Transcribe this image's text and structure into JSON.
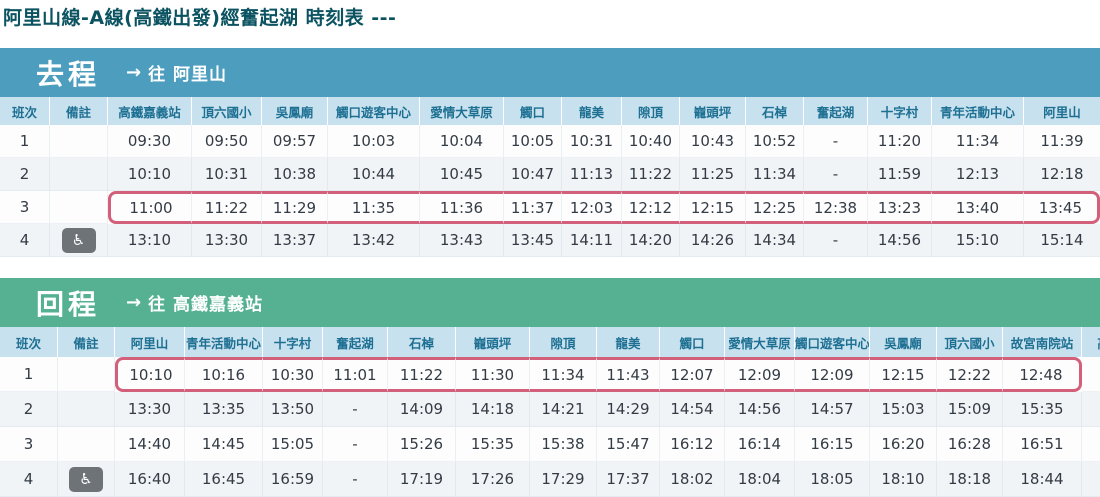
{
  "page": {
    "title": "阿里山線-A線(高鐵出發)經奮起湖 時刻表  ---"
  },
  "theme": {
    "band_out": "#4d9ebe",
    "band_ret": "#56b193",
    "header_bg": "#c7e1ee",
    "header_text": "#1e7093",
    "highlight": "#d2607a",
    "badge": "#6e7377",
    "title": "#0b5361",
    "text": "#333b44",
    "alt_row": "#f1f4f7"
  },
  "icons": {
    "wheelchair": "♿",
    "arrow_right": "→"
  },
  "tables": [
    {
      "band_label": "去程",
      "arrow": "→",
      "destination": "往 阿里山",
      "columns": [
        "班次",
        "備註",
        "高鐵嘉義站",
        "頂六國小",
        "吳鳳廟",
        "觸口遊客中心",
        "愛情大草原",
        "觸口",
        "龍美",
        "隙頂",
        "巃頭坪",
        "石棹",
        "奮起湖",
        "十字村",
        "青年活動中心",
        "阿里山"
      ],
      "rows": [
        {
          "no": "1",
          "note": "",
          "times": [
            "09:30",
            "09:50",
            "09:57",
            "10:03",
            "10:04",
            "10:05",
            "10:31",
            "10:40",
            "10:43",
            "10:52",
            "-",
            "11:20",
            "11:34",
            "11:39"
          ]
        },
        {
          "no": "2",
          "note": "",
          "times": [
            "10:10",
            "10:31",
            "10:38",
            "10:44",
            "10:45",
            "10:47",
            "11:13",
            "11:22",
            "11:25",
            "11:34",
            "-",
            "11:59",
            "12:13",
            "12:18"
          ]
        },
        {
          "no": "3",
          "note": "",
          "times": [
            "11:00",
            "11:22",
            "11:29",
            "11:35",
            "11:36",
            "11:37",
            "12:03",
            "12:12",
            "12:15",
            "12:25",
            "12:38",
            "13:23",
            "13:40",
            "13:45"
          ]
        },
        {
          "no": "4",
          "note": "wheelchair",
          "times": [
            "13:10",
            "13:30",
            "13:37",
            "13:42",
            "13:43",
            "13:45",
            "14:11",
            "14:20",
            "14:26",
            "14:34",
            "-",
            "14:56",
            "15:10",
            "15:14"
          ]
        }
      ],
      "highlight": {
        "row": 2,
        "from_col": 2,
        "to_col": 15
      }
    },
    {
      "band_label": "回程",
      "arrow": "→",
      "destination": "往 高鐵嘉義站",
      "columns": [
        "班次",
        "備註",
        "阿里山",
        "青年活動中心",
        "十字村",
        "奮起湖",
        "石棹",
        "巃頭坪",
        "隙頂",
        "龍美",
        "觸口",
        "愛情大草原",
        "觸口遊客中心",
        "吳鳳廟",
        "頂六國小",
        "故宮南院站",
        "高鐵嘉義站"
      ],
      "rows": [
        {
          "no": "1",
          "note": "",
          "times": [
            "10:10",
            "10:16",
            "10:30",
            "11:01",
            "11:22",
            "11:30",
            "11:34",
            "11:43",
            "12:07",
            "12:09",
            "12:09",
            "12:15",
            "12:22",
            "12:48",
            ""
          ]
        },
        {
          "no": "2",
          "note": "",
          "times": [
            "13:30",
            "13:35",
            "13:50",
            "-",
            "14:09",
            "14:18",
            "14:21",
            "14:29",
            "14:54",
            "14:56",
            "14:57",
            "15:03",
            "15:09",
            "15:35",
            ""
          ]
        },
        {
          "no": "3",
          "note": "",
          "times": [
            "14:40",
            "14:45",
            "15:05",
            "-",
            "15:26",
            "15:35",
            "15:38",
            "15:47",
            "16:12",
            "16:14",
            "16:15",
            "16:20",
            "16:28",
            "16:51",
            ""
          ]
        },
        {
          "no": "4",
          "note": "wheelchair",
          "times": [
            "16:40",
            "16:45",
            "16:59",
            "-",
            "17:19",
            "17:26",
            "17:29",
            "17:37",
            "18:02",
            "18:04",
            "18:05",
            "18:10",
            "18:18",
            "18:44",
            ""
          ]
        }
      ],
      "highlight": {
        "row": 0,
        "from_col": 2,
        "to_col": 15
      }
    }
  ]
}
